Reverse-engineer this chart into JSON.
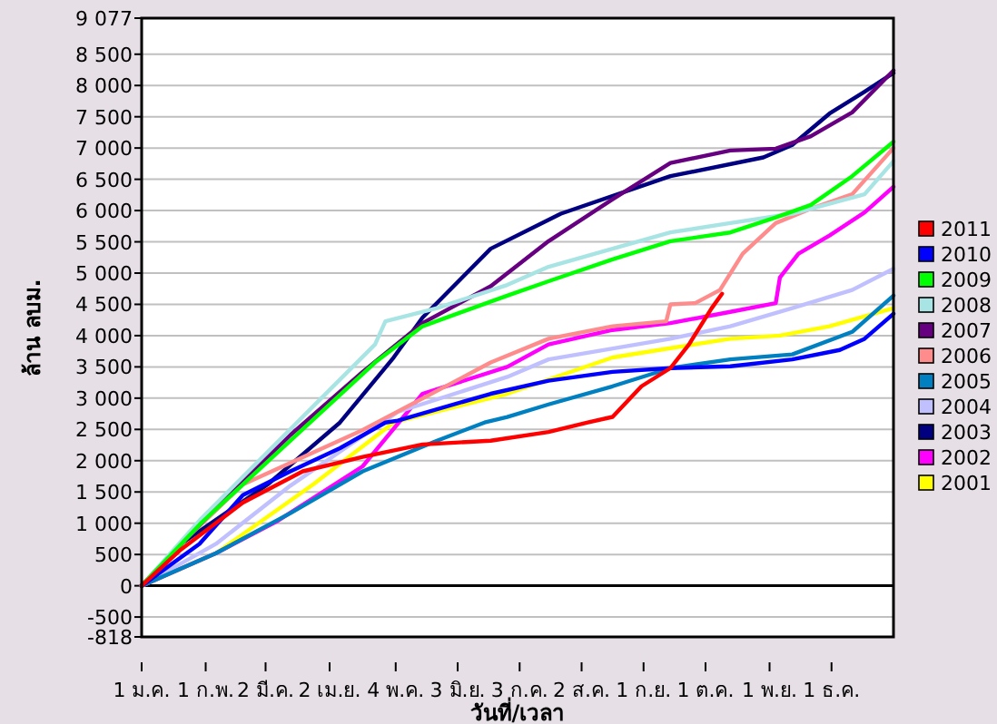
{
  "chart_data": {
    "type": "line",
    "xlabel": "วันที่/เวลา",
    "ylabel": "ล้าน ลบม.",
    "xlim": [
      "--01-01",
      "--12-31"
    ],
    "ylim": [
      -818,
      9077
    ],
    "xticks": [
      {
        "value": "--01-01",
        "label": "1 ม.ค."
      },
      {
        "value": "--02-01",
        "label": "1 ก.พ."
      },
      {
        "value": "--03-02",
        "label": "2 มี.ค."
      },
      {
        "value": "--04-02",
        "label": "2 เม.ย."
      },
      {
        "value": "--05-04",
        "label": "4 พ.ค."
      },
      {
        "value": "--06-03",
        "label": "3 มิ.ย."
      },
      {
        "value": "--07-03",
        "label": "3 ก.ค."
      },
      {
        "value": "--08-02",
        "label": "2 ส.ค."
      },
      {
        "value": "--09-01",
        "label": "1 ก.ย."
      },
      {
        "value": "--10-01",
        "label": "1 ต.ค."
      },
      {
        "value": "--11-01",
        "label": "1 พ.ย."
      },
      {
        "value": "--12-01",
        "label": "1 ธ.ค."
      }
    ],
    "yticks": [
      {
        "value": -818,
        "label": "-818"
      },
      -500,
      0,
      500,
      {
        "value": 1000,
        "label": "1 000"
      },
      {
        "value": 1500,
        "label": "1 500"
      },
      {
        "value": 2000,
        "label": "2 000"
      },
      {
        "value": 2500,
        "label": "2 500"
      },
      {
        "value": 3000,
        "label": "3 000"
      },
      {
        "value": 3500,
        "label": "3 500"
      },
      {
        "value": 4000,
        "label": "4 000"
      },
      {
        "value": 4500,
        "label": "4 500"
      },
      {
        "value": 5000,
        "label": "5 000"
      },
      {
        "value": 5500,
        "label": "5 500"
      },
      {
        "value": 6000,
        "label": "6 000"
      },
      {
        "value": 6500,
        "label": "6 500"
      },
      {
        "value": 7000,
        "label": "7 000"
      },
      {
        "value": 7500,
        "label": "7 500"
      },
      {
        "value": 8000,
        "label": "8 000"
      },
      {
        "value": 8500,
        "label": "8 500"
      },
      {
        "value": 9077,
        "label": "9 077"
      }
    ],
    "grid": "y",
    "legend": "right",
    "marker": "none",
    "line_style": "solid",
    "series": [
      {
        "name": "2011",
        "color": "#ff0000",
        "x": [
          "--01-01",
          "--01-20",
          "--02-19",
          "--03-20",
          "--04-18",
          "--05-17",
          "--06-19",
          "--07-17",
          "--08-05",
          "--08-17",
          "--08-31",
          "--09-14",
          "--09-23",
          "--10-04",
          "--10-09"
        ],
        "values": [
          0,
          580,
          1330,
          1830,
          2060,
          2260,
          2320,
          2460,
          2610,
          2700,
          3190,
          3480,
          3860,
          4440,
          4670
        ]
      },
      {
        "name": "2010",
        "color": "#0000ff",
        "x": [
          "--01-01",
          "--01-29",
          "--02-19",
          "--03-14",
          "--04-07",
          "--04-29",
          "--05-05",
          "--06-19",
          "--07-17",
          "--08-17",
          "--09-14",
          "--10-13",
          "--11-12",
          "--12-05",
          "--12-17",
          "--12-31"
        ],
        "values": [
          0,
          670,
          1450,
          1830,
          2200,
          2610,
          2640,
          3070,
          3280,
          3420,
          3480,
          3510,
          3620,
          3770,
          3950,
          4350
        ]
      },
      {
        "name": "2009",
        "color": "#00ff00",
        "x": [
          "--01-01",
          "--01-30",
          "--04-24",
          "--05-17",
          "--06-27",
          "--07-17",
          "--08-17",
          "--09-14",
          "--10-13",
          "--11-04",
          "--11-21",
          "--12-11",
          "--12-31"
        ],
        "values": [
          0,
          1010,
          3570,
          4150,
          4640,
          4870,
          5220,
          5510,
          5650,
          5890,
          6090,
          6550,
          7100
        ]
      },
      {
        "name": "2008",
        "color": "#a8e4e4",
        "x": [
          "--01-01",
          "--01-30",
          "--04-24",
          "--04-29",
          "--05-24",
          "--06-27",
          "--07-17",
          "--08-17",
          "--09-14",
          "--10-13",
          "--11-12",
          "--12-17",
          "--12-31"
        ],
        "values": [
          0,
          1080,
          3860,
          4230,
          4440,
          4810,
          5100,
          5390,
          5650,
          5800,
          5950,
          6260,
          6790
        ]
      },
      {
        "name": "2007",
        "color": "#660080",
        "x": [
          "--01-01",
          "--02-06",
          "--03-14",
          "--04-18",
          "--05-17",
          "--06-19",
          "--07-17",
          "--08-17",
          "--09-14",
          "--10-13",
          "--11-04",
          "--11-21",
          "--12-11",
          "--12-31"
        ],
        "values": [
          0,
          1250,
          2410,
          3420,
          4200,
          4790,
          5510,
          6180,
          6760,
          6960,
          6990,
          7190,
          7570,
          8240
        ]
      },
      {
        "name": "2006",
        "color": "#ff8c8c",
        "x": [
          "--01-01",
          "--01-20",
          "--02-19",
          "--04-18",
          "--06-19",
          "--07-17",
          "--08-17",
          "--09-12",
          "--09-14",
          "--09-26",
          "--10-08",
          "--10-19",
          "--11-04",
          "--11-21",
          "--12-11",
          "--12-31"
        ],
        "values": [
          0,
          670,
          1620,
          2490,
          3570,
          3950,
          4150,
          4230,
          4500,
          4520,
          4730,
          5310,
          5800,
          6030,
          6260,
          7000
        ]
      },
      {
        "name": "2005",
        "color": "#0080c0",
        "x": [
          "--01-01",
          "--02-06",
          "--03-14",
          "--04-18",
          "--05-24",
          "--06-16",
          "--06-27",
          "--07-17",
          "--08-17",
          "--09-14",
          "--10-13",
          "--11-12",
          "--12-11",
          "--12-31"
        ],
        "values": [
          0,
          520,
          1160,
          1830,
          2320,
          2610,
          2700,
          2900,
          3190,
          3480,
          3620,
          3700,
          4060,
          4640
        ]
      },
      {
        "name": "2004",
        "color": "#c0c0ff",
        "x": [
          "--01-01",
          "--02-06",
          "--03-14",
          "--05-05",
          "--06-27",
          "--07-17",
          "--09-14",
          "--10-13",
          "--11-12",
          "--12-11",
          "--12-31"
        ],
        "values": [
          0,
          670,
          1600,
          2780,
          3340,
          3620,
          3950,
          4150,
          4440,
          4730,
          5070
        ]
      },
      {
        "name": "2003",
        "color": "#000080",
        "x": [
          "--01-01",
          "--01-20",
          "--03-03",
          "--04-07",
          "--05-03",
          "--05-17",
          "--06-19",
          "--07-23",
          "--09-14",
          "--10-29",
          "--11-12",
          "--11-30",
          "--12-17",
          "--12-31"
        ],
        "values": [
          0,
          670,
          1620,
          2610,
          3650,
          4290,
          5390,
          5950,
          6550,
          6850,
          7050,
          7550,
          7900,
          8200
        ]
      },
      {
        "name": "2002",
        "color": "#ff00ff",
        "x": [
          "--01-01",
          "--02-06",
          "--03-08",
          "--04-18",
          "--05-17",
          "--06-27",
          "--07-17",
          "--08-17",
          "--09-14",
          "--10-13",
          "--11-04",
          "--11-06",
          "--11-15",
          "--11-30",
          "--12-17",
          "--12-31"
        ],
        "values": [
          0,
          520,
          1040,
          1910,
          3070,
          3500,
          3860,
          4090,
          4200,
          4380,
          4520,
          4930,
          5310,
          5600,
          5970,
          6380
        ]
      },
      {
        "name": "2001",
        "color": "#ffff00",
        "x": [
          "--01-01",
          "--02-06",
          "--03-25",
          "--05-03",
          "--06-27",
          "--08-17",
          "--09-14",
          "--10-13",
          "--11-06",
          "--11-30",
          "--12-31"
        ],
        "values": [
          0,
          520,
          1620,
          2610,
          3070,
          3650,
          3800,
          3950,
          4000,
          4150,
          4440
        ]
      }
    ]
  }
}
